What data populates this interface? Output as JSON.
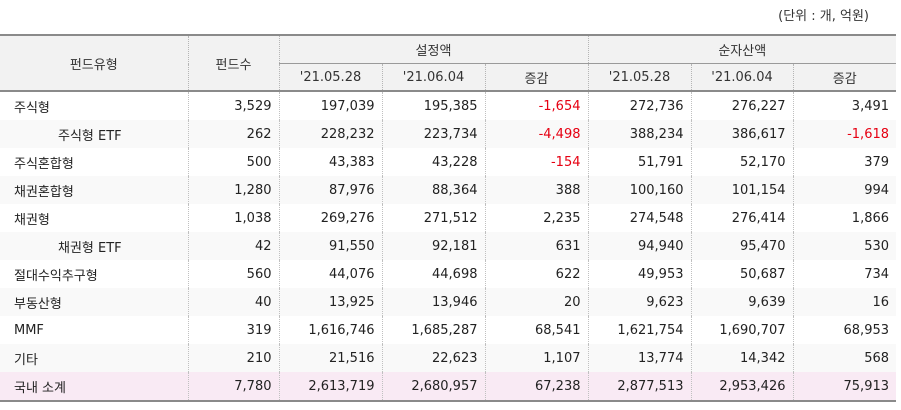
{
  "unit_note": "(단위 : 개, 억원)",
  "header": {
    "fund_type": "펀드유형",
    "fund_count": "펀드수",
    "group_setting": "설정액",
    "group_net_assets": "순자산액",
    "date1": "'21.05.28",
    "date2": "'21.06.04",
    "change": "증감"
  },
  "rows": [
    {
      "type": "주식형",
      "indent": false,
      "count": "3,529",
      "set_d1": "197,039",
      "set_d2": "195,385",
      "set_chg": "-1,654",
      "set_neg": true,
      "na_d1": "272,736",
      "na_d2": "276,227",
      "na_chg": "3,491",
      "na_neg": false
    },
    {
      "type": "주식형 ETF",
      "indent": true,
      "count": "262",
      "set_d1": "228,232",
      "set_d2": "223,734",
      "set_chg": "-4,498",
      "set_neg": true,
      "na_d1": "388,234",
      "na_d2": "386,617",
      "na_chg": "-1,618",
      "na_neg": true
    },
    {
      "type": "주식혼합형",
      "indent": false,
      "count": "500",
      "set_d1": "43,383",
      "set_d2": "43,228",
      "set_chg": "-154",
      "set_neg": true,
      "na_d1": "51,791",
      "na_d2": "52,170",
      "na_chg": "379",
      "na_neg": false
    },
    {
      "type": "채권혼합형",
      "indent": false,
      "count": "1,280",
      "set_d1": "87,976",
      "set_d2": "88,364",
      "set_chg": "388",
      "set_neg": false,
      "na_d1": "100,160",
      "na_d2": "101,154",
      "na_chg": "994",
      "na_neg": false
    },
    {
      "type": "채권형",
      "indent": false,
      "count": "1,038",
      "set_d1": "269,276",
      "set_d2": "271,512",
      "set_chg": "2,235",
      "set_neg": false,
      "na_d1": "274,548",
      "na_d2": "276,414",
      "na_chg": "1,866",
      "na_neg": false
    },
    {
      "type": "채권형 ETF",
      "indent": true,
      "count": "42",
      "set_d1": "91,550",
      "set_d2": "92,181",
      "set_chg": "631",
      "set_neg": false,
      "na_d1": "94,940",
      "na_d2": "95,470",
      "na_chg": "530",
      "na_neg": false
    },
    {
      "type": "절대수익추구형",
      "indent": false,
      "count": "560",
      "set_d1": "44,076",
      "set_d2": "44,698",
      "set_chg": "622",
      "set_neg": false,
      "na_d1": "49,953",
      "na_d2": "50,687",
      "na_chg": "734",
      "na_neg": false
    },
    {
      "type": "부동산형",
      "indent": false,
      "count": "40",
      "set_d1": "13,925",
      "set_d2": "13,946",
      "set_chg": "20",
      "set_neg": false,
      "na_d1": "9,623",
      "na_d2": "9,639",
      "na_chg": "16",
      "na_neg": false
    },
    {
      "type": "MMF",
      "indent": false,
      "count": "319",
      "set_d1": "1,616,746",
      "set_d2": "1,685,287",
      "set_chg": "68,541",
      "set_neg": false,
      "na_d1": "1,621,754",
      "na_d2": "1,690,707",
      "na_chg": "68,953",
      "na_neg": false
    },
    {
      "type": "기타",
      "indent": false,
      "count": "210",
      "set_d1": "21,516",
      "set_d2": "22,623",
      "set_chg": "1,107",
      "set_neg": false,
      "na_d1": "13,774",
      "na_d2": "14,342",
      "na_chg": "568",
      "na_neg": false
    },
    {
      "type": "국내 소계",
      "indent": false,
      "total": true,
      "count": "7,780",
      "set_d1": "2,613,719",
      "set_d2": "2,680,957",
      "set_chg": "67,238",
      "set_neg": false,
      "na_d1": "2,877,513",
      "na_d2": "2,953,426",
      "na_chg": "75,913",
      "na_neg": false
    }
  ],
  "colors": {
    "negative": "#e60012",
    "total_row_bg": "#f9eaf4",
    "header_bg": "#f2f2f2"
  }
}
